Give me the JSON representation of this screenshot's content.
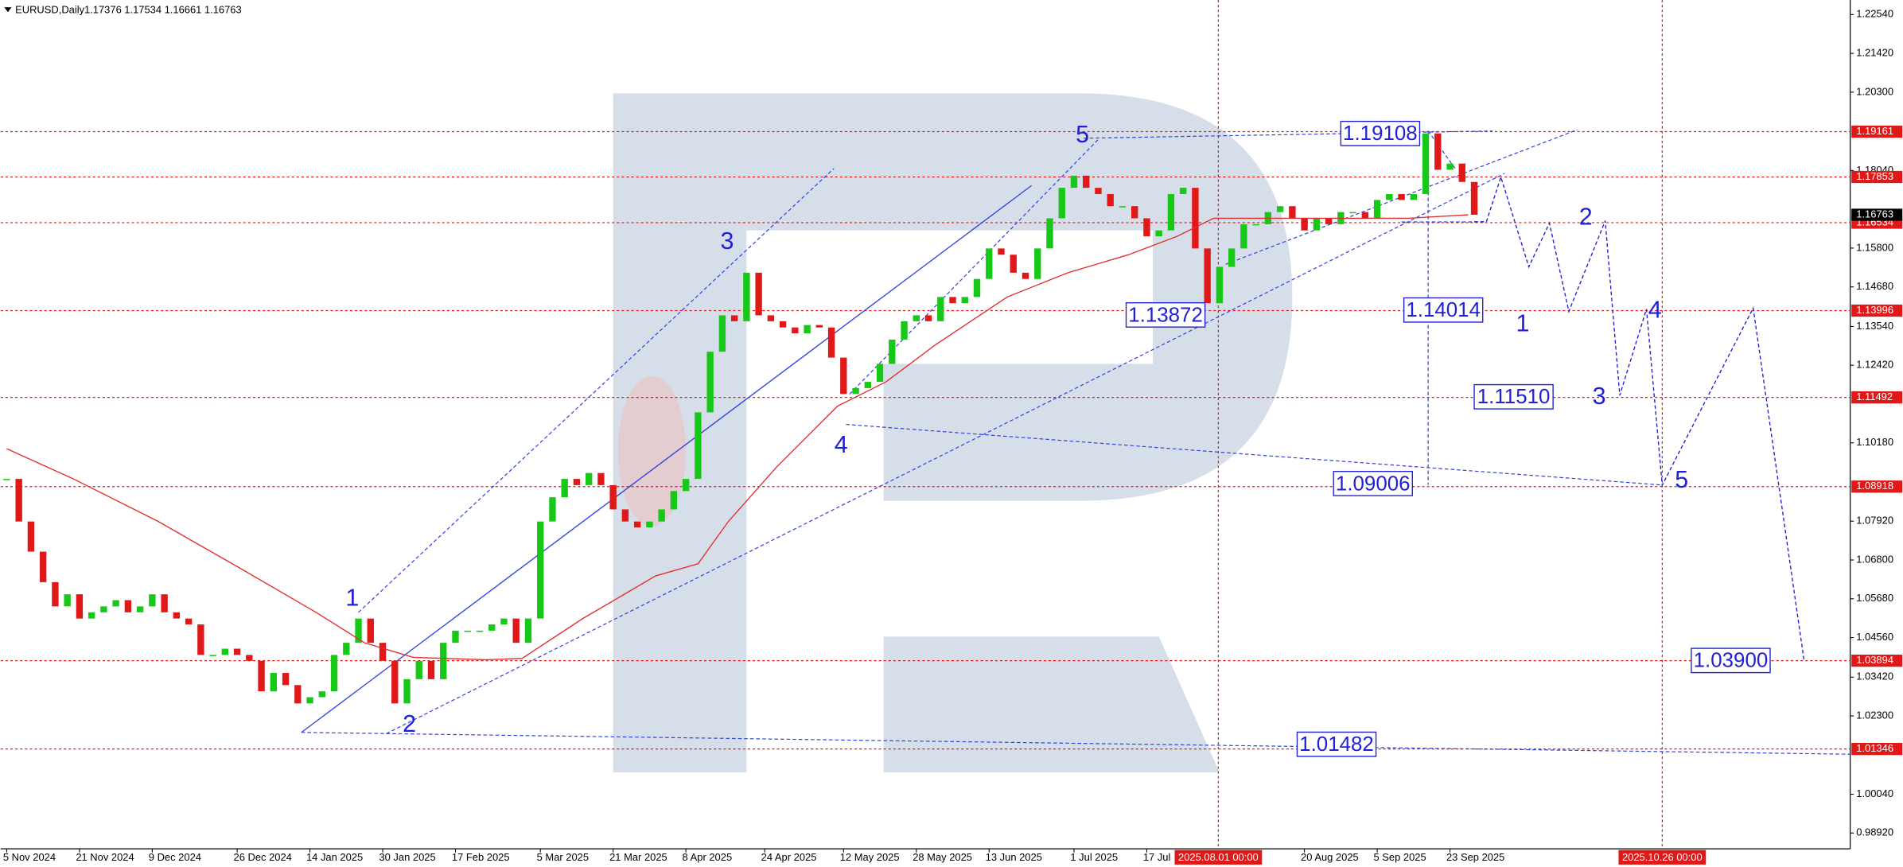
{
  "chart_data": {
    "type": "candlestick",
    "title": "EURUSD,Daily",
    "ohlc": {
      "open": 1.17376,
      "high": 1.17534,
      "low": 1.16661,
      "close": 1.16763
    },
    "colors": {
      "up": "#18c818",
      "down": "#e01818",
      "ma": "#e03030",
      "level": "#e01818",
      "annotation": "#2020d8"
    },
    "close": [
      1.0914,
      1.0791,
      1.0704,
      1.0616,
      1.0546,
      1.0581,
      1.0511,
      1.0529,
      1.0546,
      1.0564,
      1.0529,
      1.0546,
      1.0581,
      1.0529,
      1.0511,
      1.0494,
      1.0406,
      1.0406,
      1.0424,
      1.0406,
      1.0389,
      1.0301,
      1.0354,
      1.0319,
      1.0266,
      1.0284,
      1.0301,
      1.0406,
      1.0441,
      1.0511,
      1.0441,
      1.0389,
      1.0266,
      1.0336,
      1.0389,
      1.0336,
      1.0441,
      1.0476,
      1.0476,
      1.0476,
      1.0494,
      1.0511,
      1.0441,
      1.0511,
      1.0791,
      1.0861,
      1.0914,
      1.0896,
      1.0931,
      1.0896,
      1.0826,
      1.0791,
      1.0774,
      1.0791,
      1.0826,
      1.0879,
      1.0914,
      1.1106,
      1.1281,
      1.1386,
      1.1369,
      1.1509,
      1.1386,
      1.1369,
      1.1351,
      1.1334,
      1.1358,
      1.1351,
      1.1264,
      1.1159,
      1.1176,
      1.1194,
      1.1246,
      1.1316,
      1.1369,
      1.1386,
      1.1369,
      1.1439,
      1.1421,
      1.1439,
      1.1491,
      1.1579,
      1.1561,
      1.1509,
      1.1491,
      1.1579,
      1.1666,
      1.1754,
      1.1789,
      1.1754,
      1.1736,
      1.1701,
      1.1701,
      1.1666,
      1.1614,
      1.1631,
      1.1736,
      1.1754,
      1.1579,
      1.1421,
      1.1526,
      1.1579,
      1.1649,
      1.1649,
      1.1684,
      1.1701,
      1.1666,
      1.1631,
      1.1666,
      1.1649,
      1.1684,
      1.1684,
      1.1666,
      1.1719,
      1.1736,
      1.1719,
      1.1736,
      1.1911,
      1.1806,
      1.1824,
      1.1771,
      1.16763
    ],
    "ma": {
      "x": [
        0,
        5.5,
        12.5,
        19.5,
        25.5,
        29.5,
        33.5,
        39.5,
        42.5,
        47.5,
        53.5,
        57,
        59.5,
        63.5,
        68.5,
        72.5,
        76.5,
        82.5,
        87.5,
        92.5,
        96.5,
        99.5,
        105.5,
        111.5,
        115.5,
        120.5
      ],
      "values": [
        1.1001,
        1.0914,
        1.0791,
        1.0651,
        1.0529,
        1.0441,
        1.0399,
        1.0392,
        1.0396,
        1.0511,
        1.0634,
        1.0669,
        1.0791,
        1.0949,
        1.1124,
        1.1194,
        1.1299,
        1.1439,
        1.1509,
        1.1561,
        1.1614,
        1.1666,
        1.1666,
        1.1666,
        1.1666,
        1.1676
      ]
    },
    "forecast": {
      "x": [
        121,
        122,
        123.2,
        125.5,
        127.2,
        128.8,
        131.8,
        133,
        135.2,
        136.5,
        144,
        148.2
      ],
      "values": [
        1.1656,
        1.1656,
        1.1785,
        1.1526,
        1.1652,
        1.1397,
        1.1659,
        1.1155,
        1.1404,
        1.0896,
        1.1407,
        1.0389
      ]
    },
    "xlim": [
      -0.5,
      152
    ],
    "ylim": [
      0.98465,
      1.2296
    ],
    "yticks": [
      {
        "value": 1.2254,
        "label": "1.22540"
      },
      {
        "value": 1.2142,
        "label": "1.21420"
      },
      {
        "value": 1.203,
        "label": "1.20300"
      },
      {
        "value": 1.1804,
        "label": "1.18040"
      },
      {
        "value": 1.158,
        "label": "1.15800"
      },
      {
        "value": 1.1468,
        "label": "1.14680"
      },
      {
        "value": 1.1354,
        "label": "1.13540"
      },
      {
        "value": 1.1242,
        "label": "1.12420"
      },
      {
        "value": 1.1018,
        "label": "1.10180"
      },
      {
        "value": 1.0792,
        "label": "1.07920"
      },
      {
        "value": 1.068,
        "label": "1.06800"
      },
      {
        "value": 1.0568,
        "label": "1.05680"
      },
      {
        "value": 1.0456,
        "label": "1.04560"
      },
      {
        "value": 1.0342,
        "label": "1.03420"
      },
      {
        "value": 1.023,
        "label": "1.02300"
      },
      {
        "value": 1.0004,
        "label": "1.00040"
      },
      {
        "value": 0.9892,
        "label": "0.98920"
      }
    ],
    "xticks": [
      {
        "value": 0,
        "label": "5 Nov 2024"
      },
      {
        "value": 6,
        "label": "21 Nov 2024"
      },
      {
        "value": 12,
        "label": "9 Dec 2024"
      },
      {
        "value": 19,
        "label": "26 Dec 2024"
      },
      {
        "value": 25,
        "label": "14 Jan 2025"
      },
      {
        "value": 31,
        "label": "30 Jan 2025"
      },
      {
        "value": 37,
        "label": "17 Feb 2025"
      },
      {
        "value": 44,
        "label": "5 Mar 2025"
      },
      {
        "value": 50,
        "label": "21 Mar 2025"
      },
      {
        "value": 56,
        "label": "8 Apr 2025"
      },
      {
        "value": 62.5,
        "label": "24 Apr 2025"
      },
      {
        "value": 69,
        "label": "12 May 2025"
      },
      {
        "value": 75,
        "label": "28 May 2025"
      },
      {
        "value": 81,
        "label": "13 Jun 2025"
      },
      {
        "value": 88,
        "label": "1 Jul 2025"
      },
      {
        "value": 94,
        "label": "17 Jul"
      },
      {
        "value": 107,
        "label": "20 Aug 2025"
      },
      {
        "value": 113,
        "label": "5 Sep 2025"
      },
      {
        "value": 119,
        "label": "23 Sep 2025"
      }
    ],
    "levels": [
      {
        "value": 1.19161,
        "label": "1.19161"
      },
      {
        "value": 1.17853,
        "label": "1.17853"
      },
      {
        "value": 1.16534,
        "label": "1.16534"
      },
      {
        "value": 1.13996,
        "label": "1.13996"
      },
      {
        "value": 1.11492,
        "label": "1.11492"
      },
      {
        "value": 1.08918,
        "label": "1.08918"
      },
      {
        "value": 1.03894,
        "label": "1.03894"
      },
      {
        "value": 1.01346,
        "label": "1.01346"
      }
    ],
    "current": {
      "value": 1.16763,
      "label": "1.16763"
    },
    "vlines": [
      {
        "value": 99.9,
        "label": "2025.08.01 00:00"
      },
      {
        "value": 136.5,
        "label": "2025.10.26 00:00"
      }
    ],
    "waves": [
      {
        "label": "1",
        "x": 28.5,
        "value": 1.0567
      },
      {
        "label": "2",
        "x": 33.2,
        "value": 1.0203
      },
      {
        "label": "3",
        "x": 59.4,
        "value": 1.1596
      },
      {
        "label": "4",
        "x": 68.8,
        "value": 1.1008
      },
      {
        "label": "5",
        "x": 88.7,
        "value": 1.1904
      },
      {
        "label": "1",
        "x": 125,
        "value": 1.1358
      },
      {
        "label": "2",
        "x": 130.2,
        "value": 1.1666
      },
      {
        "label": "3",
        "x": 131.3,
        "value": 1.1148
      },
      {
        "label": "4",
        "x": 135.9,
        "value": 1.1397
      },
      {
        "label": "5",
        "x": 138.1,
        "value": 1.0907
      }
    ],
    "price_boxes": [
      {
        "label": "1.19108",
        "value": 1.19108,
        "x": 110
      },
      {
        "label": "1.13872",
        "value": 1.13872,
        "x": 92.3
      },
      {
        "label": "1.14014",
        "value": 1.14014,
        "x": 115.2
      },
      {
        "label": "1.11510",
        "value": 1.1151,
        "x": 121
      },
      {
        "label": "1.09006",
        "value": 1.09006,
        "x": 109.4
      },
      {
        "label": "1.03900",
        "value": 1.039,
        "x": 138.9
      },
      {
        "label": "1.01482",
        "value": 1.01482,
        "x": 106.4
      }
    ]
  }
}
